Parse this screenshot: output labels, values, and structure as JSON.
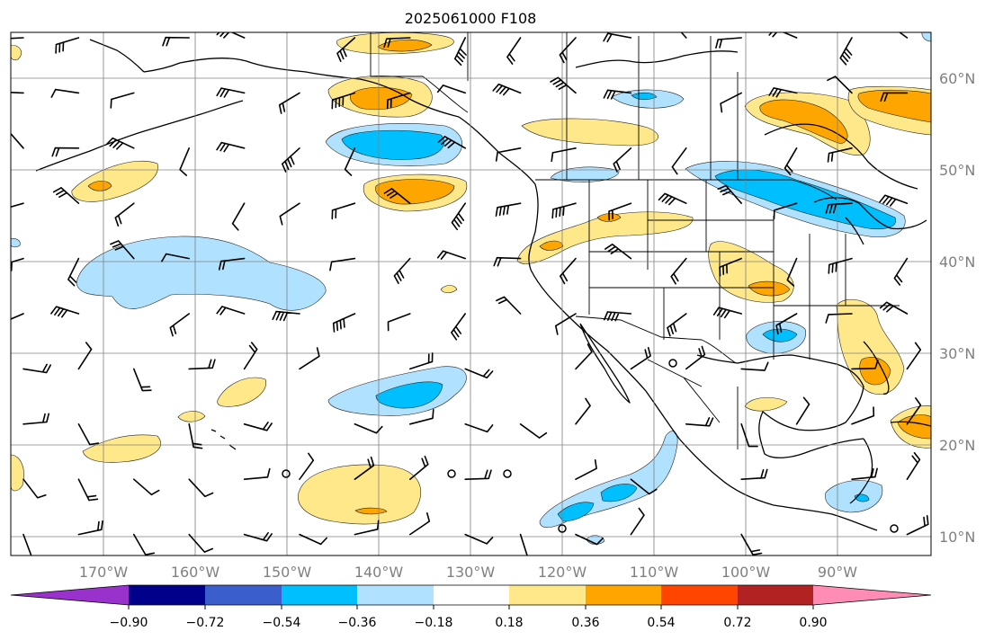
{
  "title": "2025061000 F108",
  "lat_labels": [
    "60°N",
    "50°N",
    "40°N",
    "30°N",
    "20°N",
    "10°N"
  ],
  "lon_labels": [
    "170°W",
    "160°W",
    "150°W",
    "140°W",
    "130°W",
    "120°W",
    "110°W",
    "100°W",
    "90°W"
  ],
  "colorbar": {
    "colors": [
      "#9932cc",
      "#00008b",
      "#3a5fcd",
      "#00bfff",
      "#b0e2ff",
      "#ffffff",
      "#ffe88a",
      "#ffa500",
      "#ff4500",
      "#b22222",
      "#ff8cb4"
    ],
    "tick_labels": [
      "−0.90",
      "−0.72",
      "−0.54",
      "−0.36",
      "−0.18",
      "0.18",
      "0.36",
      "0.54",
      "0.72",
      "0.90"
    ]
  },
  "map_data": {
    "type": "map",
    "projection": "equirectangular",
    "lon_range": [
      -180,
      -80
    ],
    "lat_range": [
      7,
      65
    ],
    "fill_colors": {
      "light_blue": "#b0e2ff",
      "blue": "#00bfff",
      "light_yellow": "#ffe88a",
      "orange": "#ffa500"
    }
  }
}
